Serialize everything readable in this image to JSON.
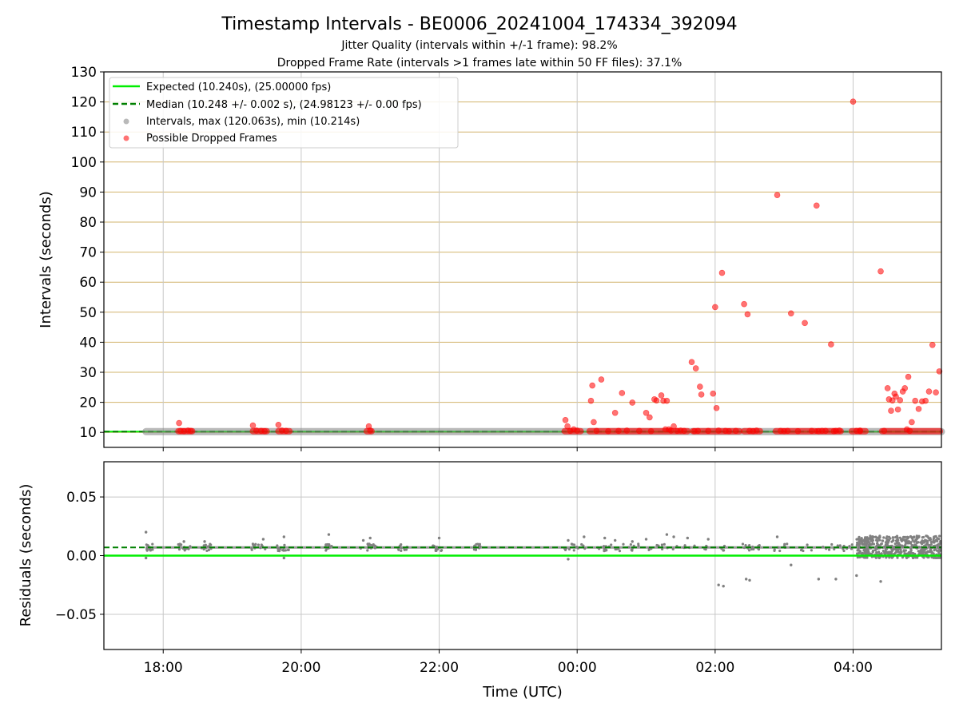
{
  "figure": {
    "title": "Timestamp Intervals - BE0006_20241004_174334_392094",
    "subtitle1": "Jitter Quality (intervals within +/-1 frame): 98.2%",
    "subtitle2": "Dropped Frame Rate (intervals >1 frames late within 50 FF files): 37.1%"
  },
  "colors": {
    "expected": "#00ee00",
    "median": "#008000",
    "intervals": "#808080",
    "dropped": "#ff0000",
    "hgrid_top": "#d2b46e",
    "grid": "#c8c8c8"
  },
  "chart_data": [
    {
      "type": "scatter",
      "ylabel": "Intervals (seconds)",
      "ylim": [
        5,
        130
      ],
      "yticks": [
        10,
        20,
        30,
        40,
        50,
        60,
        70,
        80,
        90,
        100,
        110,
        120,
        130
      ],
      "xlim_hours": [
        17.14,
        29.28
      ],
      "legend_position": "top-left",
      "grid": true,
      "reference_lines": [
        {
          "name": "Expected (10.240s), (25.00000 fps)",
          "y": 10.24,
          "style": "solid"
        },
        {
          "name": "Median (10.248 +/- 0.002 s), (24.98123 +/- 0.00 fps)",
          "y": 10.248,
          "style": "dashed"
        }
      ],
      "series": [
        {
          "name": "Intervals, max (120.063s), min (10.214s)",
          "kind": "band",
          "x_range_hours": [
            17.75,
            29.28
          ],
          "y": 10.25
        },
        {
          "name": "Possible Dropped Frames",
          "kind": "points",
          "x_hours": [
            18.23,
            18.25,
            18.3,
            18.36,
            18.4,
            19.3,
            19.35,
            19.42,
            19.47,
            19.67,
            19.72,
            19.78,
            20.98,
            21.0,
            23.83,
            23.86,
            23.9,
            23.95,
            24.0,
            24.2,
            24.22,
            24.24,
            24.28,
            24.35,
            24.45,
            24.55,
            24.6,
            24.65,
            24.72,
            24.8,
            24.9,
            25.0,
            25.05,
            25.07,
            25.12,
            25.15,
            25.22,
            25.25,
            25.28,
            25.3,
            25.33,
            25.36,
            25.4,
            25.45,
            25.5,
            25.55,
            25.66,
            25.7,
            25.72,
            25.75,
            25.78,
            25.8,
            25.9,
            25.97,
            26.0,
            26.02,
            26.05,
            26.1,
            26.15,
            26.2,
            26.3,
            26.42,
            26.47,
            26.5,
            26.55,
            26.6,
            26.9,
            26.95,
            27.0,
            27.05,
            27.1,
            27.2,
            27.3,
            27.4,
            27.47,
            27.5,
            27.55,
            27.6,
            27.68,
            27.72,
            27.75,
            27.8,
            28.0,
            28.05,
            28.1,
            28.1,
            28.4,
            28.45,
            28.5,
            28.52,
            28.55,
            28.57,
            28.6,
            28.62,
            28.65,
            28.68,
            28.72,
            28.75,
            28.78,
            28.8,
            28.82,
            28.85,
            28.9,
            28.95,
            29.0,
            29.05,
            29.1,
            29.15,
            29.2,
            29.25
          ],
          "values": [
            13.1,
            10.5,
            10.4,
            10.6,
            10.5,
            12.3,
            10.6,
            10.5,
            10.4,
            12.5,
            10.6,
            10.5,
            12.0,
            10.6,
            14.1,
            12.0,
            10.5,
            11.0,
            10.6,
            20.5,
            25.6,
            13.4,
            10.5,
            27.6,
            10.4,
            16.5,
            10.5,
            23.1,
            10.6,
            19.9,
            10.5,
            16.5,
            15.0,
            10.4,
            21.0,
            20.6,
            22.3,
            20.5,
            11.0,
            20.5,
            11.0,
            10.6,
            12.0,
            10.5,
            10.6,
            10.5,
            33.4,
            10.4,
            31.3,
            10.5,
            25.2,
            22.6,
            10.5,
            22.9,
            51.7,
            18.1,
            10.6,
            63.1,
            10.5,
            10.4,
            10.5,
            52.7,
            49.3,
            10.5,
            10.4,
            10.6,
            89.0,
            10.5,
            10.4,
            10.5,
            49.6,
            10.4,
            46.4,
            10.5,
            85.5,
            10.4,
            10.5,
            10.5,
            39.3,
            10.4,
            10.5,
            10.6,
            120.1,
            10.5,
            10.4,
            10.6,
            63.6,
            10.5,
            24.7,
            21.0,
            17.2,
            20.6,
            22.9,
            21.9,
            17.6,
            20.7,
            23.6,
            24.7,
            11.0,
            28.5,
            10.5,
            13.4,
            20.5,
            17.8,
            20.3,
            20.5,
            23.6,
            39.1,
            23.3,
            30.3
          ]
        }
      ]
    },
    {
      "type": "scatter",
      "xlabel": "Time (UTC)",
      "ylabel": "Residuals (seconds)",
      "ylim": [
        -0.08,
        0.08
      ],
      "yticks": [
        -0.05,
        0.0,
        0.05
      ],
      "ytick_labels": [
        "−0.05",
        "0.00",
        "0.05"
      ],
      "xticks_hours": [
        18,
        20,
        22,
        24,
        26,
        28
      ],
      "xtick_labels": [
        "18:00",
        "20:00",
        "22:00",
        "00:00",
        "02:00",
        "04:00"
      ],
      "xlim_hours": [
        17.14,
        29.28
      ],
      "grid": true,
      "reference_lines": [
        {
          "name": "Expected",
          "y": 0.0,
          "style": "solid"
        },
        {
          "name": "Median",
          "y": 0.007,
          "style": "dashed"
        }
      ],
      "series": [
        {
          "name": "Residuals",
          "baseline_y": 0.007,
          "x_range_hours": [
            17.75,
            29.28
          ],
          "outliers_x_hours": [
            17.75,
            17.75,
            18.3,
            18.6,
            19.45,
            19.75,
            19.75,
            20.4,
            20.9,
            21.0,
            22.0,
            23.87,
            23.87,
            24.1,
            24.4,
            24.55,
            24.8,
            25.0,
            25.3,
            25.4,
            25.6,
            25.9,
            26.05,
            26.12,
            26.45,
            26.5,
            26.9,
            27.1,
            27.5,
            27.75,
            28.05,
            28.4
          ],
          "outliers_y": [
            0.02,
            -0.002,
            0.012,
            0.012,
            0.014,
            0.016,
            -0.002,
            0.018,
            0.013,
            0.015,
            0.015,
            0.013,
            -0.003,
            0.016,
            0.015,
            0.013,
            0.012,
            0.014,
            0.018,
            0.016,
            0.015,
            0.014,
            -0.025,
            -0.026,
            -0.02,
            -0.021,
            0.016,
            -0.008,
            -0.02,
            -0.02,
            -0.017,
            -0.022
          ],
          "dense_region_x_hours": [
            28.05,
            29.28
          ],
          "dense_region_y": [
            -0.002,
            0.017
          ]
        }
      ]
    }
  ]
}
